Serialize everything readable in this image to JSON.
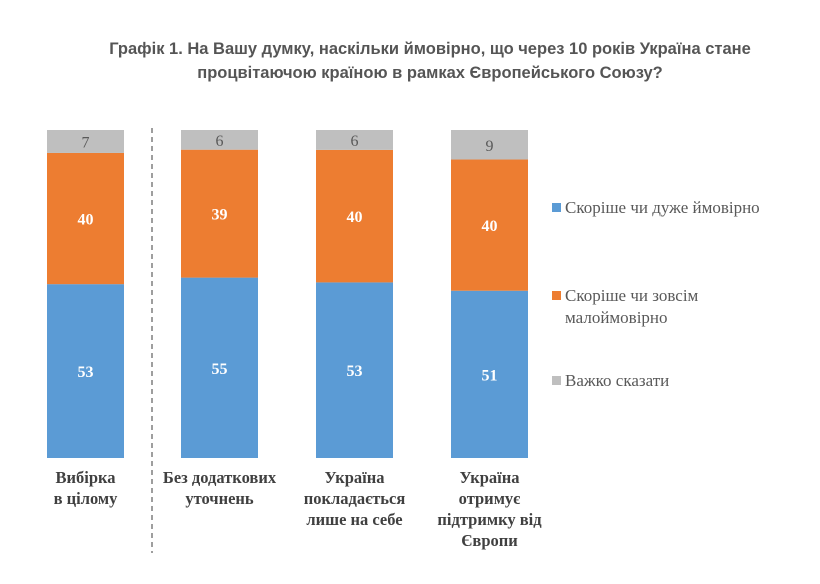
{
  "chart_data": {
    "type": "bar",
    "stacked": true,
    "title": "Графік 1. На Вашу думку, наскільки ймовірно, що через 10 років Україна стане процвітаючою країною в рамках Європейського Союзу?",
    "title_lines": [
      "Графік 1. На Вашу думку, наскільки ймовірно, що через 10 років Україна стане",
      "процвітаючою країною в рамках Європейського Союзу?"
    ],
    "categories": [
      [
        "Вибірка",
        "в цілому"
      ],
      [
        "Без додаткових",
        "уточнень"
      ],
      [
        "Україна",
        "покладається",
        "лише на себе"
      ],
      [
        "Україна",
        "отримує",
        "підтримку від",
        "Європи"
      ]
    ],
    "series": [
      {
        "name": "Скоріше чи дуже ймовірно",
        "name_lines": [
          "Скоріше чи дуже ймовірно"
        ],
        "color": "#5B9BD5",
        "values": [
          53,
          55,
          53,
          51
        ]
      },
      {
        "name": "Скоріше чи зовсім малоймовірно",
        "name_lines": [
          "Скоріше чи зовсім",
          "малоймовірно"
        ],
        "color": "#ED7D31",
        "values": [
          40,
          39,
          40,
          40
        ]
      },
      {
        "name": "Важко сказати",
        "name_lines": [
          "Важко сказати"
        ],
        "color": "#BFBFBF",
        "values": [
          7,
          6,
          6,
          9
        ]
      }
    ],
    "ylim": [
      0,
      100
    ],
    "legend": "right",
    "grid": false
  }
}
